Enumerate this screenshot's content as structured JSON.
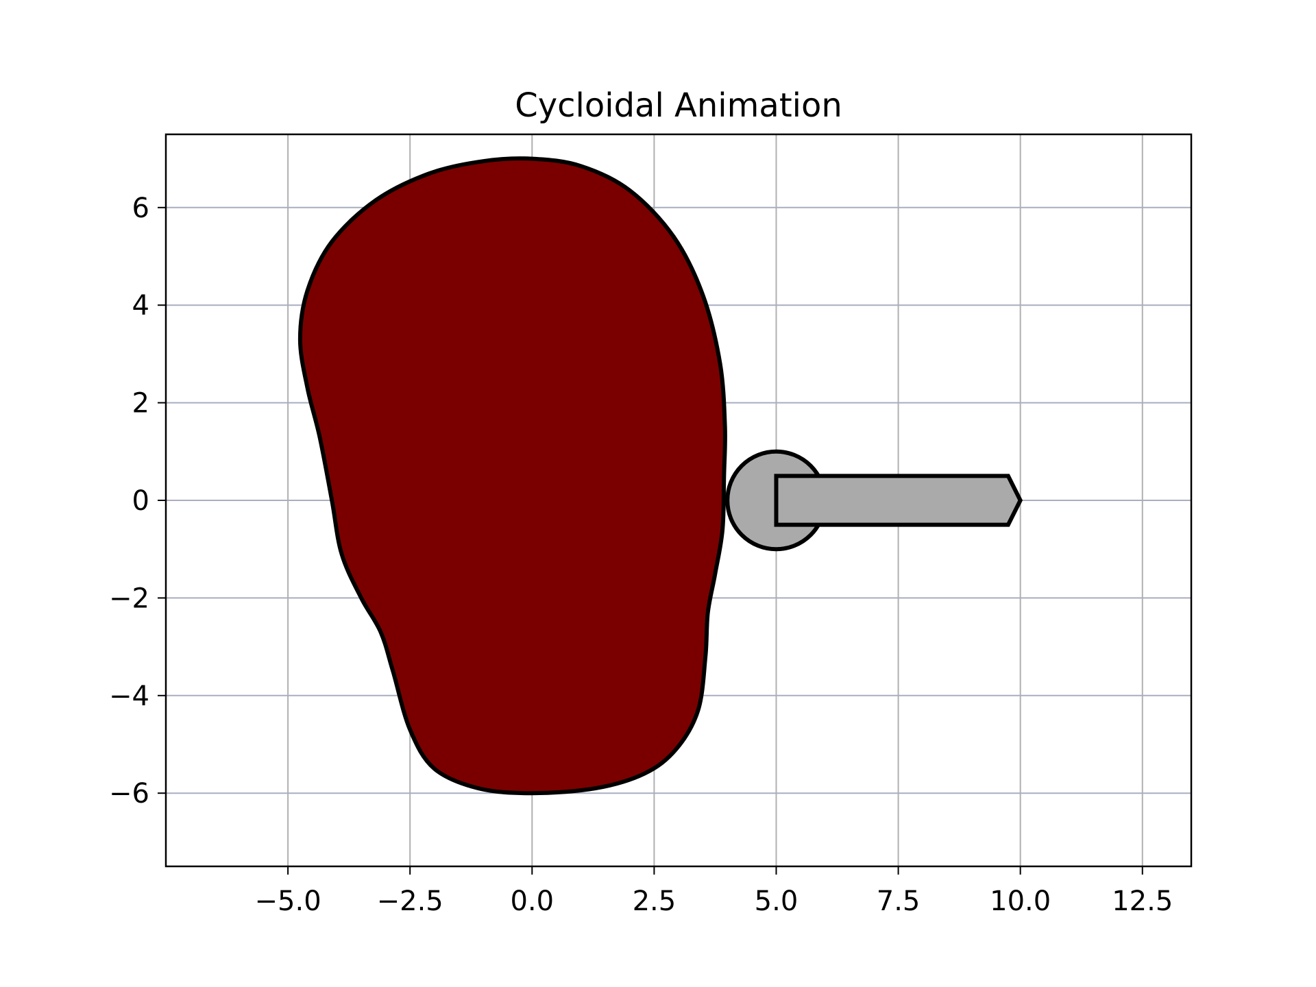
{
  "chart_data": {
    "type": "line",
    "title": "Cycloidal Animation",
    "xlabel": "",
    "ylabel": "",
    "xlim": [
      -7.5,
      13.5
    ],
    "ylim": [
      -7.5,
      7.5
    ],
    "grid": true,
    "x_ticks": [
      {
        "value": -5.0,
        "label": "−5.0"
      },
      {
        "value": -2.5,
        "label": "−2.5"
      },
      {
        "value": 0.0,
        "label": "0.0"
      },
      {
        "value": 2.5,
        "label": "2.5"
      },
      {
        "value": 5.0,
        "label": "5.0"
      },
      {
        "value": 7.5,
        "label": "7.5"
      },
      {
        "value": 10.0,
        "label": "10.0"
      },
      {
        "value": 12.5,
        "label": "12.5"
      }
    ],
    "y_ticks": [
      {
        "value": 6,
        "label": "6"
      },
      {
        "value": 4,
        "label": "4"
      },
      {
        "value": 2,
        "label": "2"
      },
      {
        "value": 0,
        "label": "0"
      },
      {
        "value": -2,
        "label": "−2"
      },
      {
        "value": -4,
        "label": "−4"
      },
      {
        "value": -6,
        "label": "−6"
      }
    ],
    "cam_profile": {
      "fill": "#7a0000",
      "edge": "#000000",
      "points": [
        [
          0,
          7.0
        ],
        [
          1,
          6.85
        ],
        [
          2,
          6.35
        ],
        [
          2.9,
          5.4
        ],
        [
          3.5,
          4.2
        ],
        [
          3.85,
          2.8
        ],
        [
          3.95,
          1.5
        ],
        [
          3.93,
          0.5
        ],
        [
          3.9,
          -0.6
        ],
        [
          3.75,
          -1.5
        ],
        [
          3.6,
          -2.3
        ],
        [
          3.55,
          -3.2
        ],
        [
          3.4,
          -4.3
        ],
        [
          2.95,
          -5.1
        ],
        [
          2.3,
          -5.6
        ],
        [
          1.3,
          -5.9
        ],
        [
          0,
          -6.0
        ],
        [
          -1.1,
          -5.9
        ],
        [
          -2.0,
          -5.5
        ],
        [
          -2.5,
          -4.7
        ],
        [
          -2.85,
          -3.5
        ],
        [
          -3.1,
          -2.7
        ],
        [
          -3.5,
          -2.0
        ],
        [
          -3.9,
          -1.1
        ],
        [
          -4.1,
          0.0
        ],
        [
          -4.35,
          1.3
        ],
        [
          -4.6,
          2.3
        ],
        [
          -4.75,
          3.3
        ],
        [
          -4.6,
          4.3
        ],
        [
          -4.1,
          5.3
        ],
        [
          -3.2,
          6.15
        ],
        [
          -2.1,
          6.7
        ],
        [
          -1.0,
          6.95
        ]
      ]
    },
    "follower_roller": {
      "center": [
        5.0,
        0.0
      ],
      "radius": 1.0,
      "fill": "#aaaaaa",
      "edge": "#000000"
    },
    "follower_rod": {
      "x_start": 5.0,
      "x_end": 10.0,
      "half_width": 0.5,
      "tip_length": 0.25,
      "fill": "#aaaaaa",
      "edge": "#000000"
    }
  }
}
